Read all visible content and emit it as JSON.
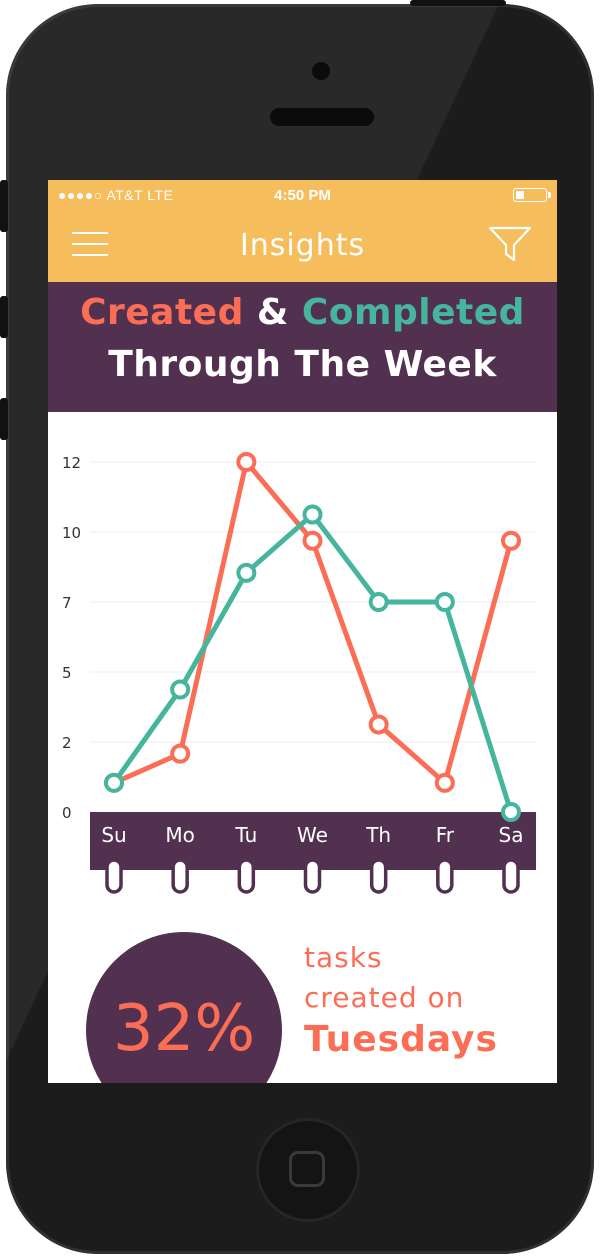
{
  "status_bar": {
    "carrier": "●●●●○ AT&T  LTE",
    "time": "4:50 PM",
    "battery_level": 0.3
  },
  "nav": {
    "title": "Insights",
    "left_icon": "hamburger-menu-icon",
    "right_icon": "filter-funnel-icon"
  },
  "banner": {
    "word_created": "Created",
    "word_and": " & ",
    "word_completed": "Completed",
    "line2": "Through The Week"
  },
  "colors": {
    "accent_yellow": "#f5bd5c",
    "purple": "#523050",
    "created": "#fb6e55",
    "completed": "#46b59d",
    "white": "#ffffff"
  },
  "chart_data": {
    "type": "line",
    "categories": [
      "Su",
      "Mo",
      "Tu",
      "We",
      "Th",
      "Fr",
      "Sa"
    ],
    "y_ticks": [
      "12",
      "10",
      "7",
      "5",
      "2",
      "0"
    ],
    "ylim": [
      0,
      12
    ],
    "series": [
      {
        "name": "Created",
        "color": "#fb6e55",
        "values": [
          1,
          2,
          12,
          9.3,
          3,
          1,
          9.3
        ]
      },
      {
        "name": "Completed",
        "color": "#46b59d",
        "values": [
          1,
          4.2,
          8.2,
          10.2,
          7.2,
          7.2,
          0
        ]
      }
    ],
    "grid": true
  },
  "stat": {
    "value": "32%",
    "line1": "tasks",
    "line2": "created on",
    "line3": "Tuesdays"
  }
}
